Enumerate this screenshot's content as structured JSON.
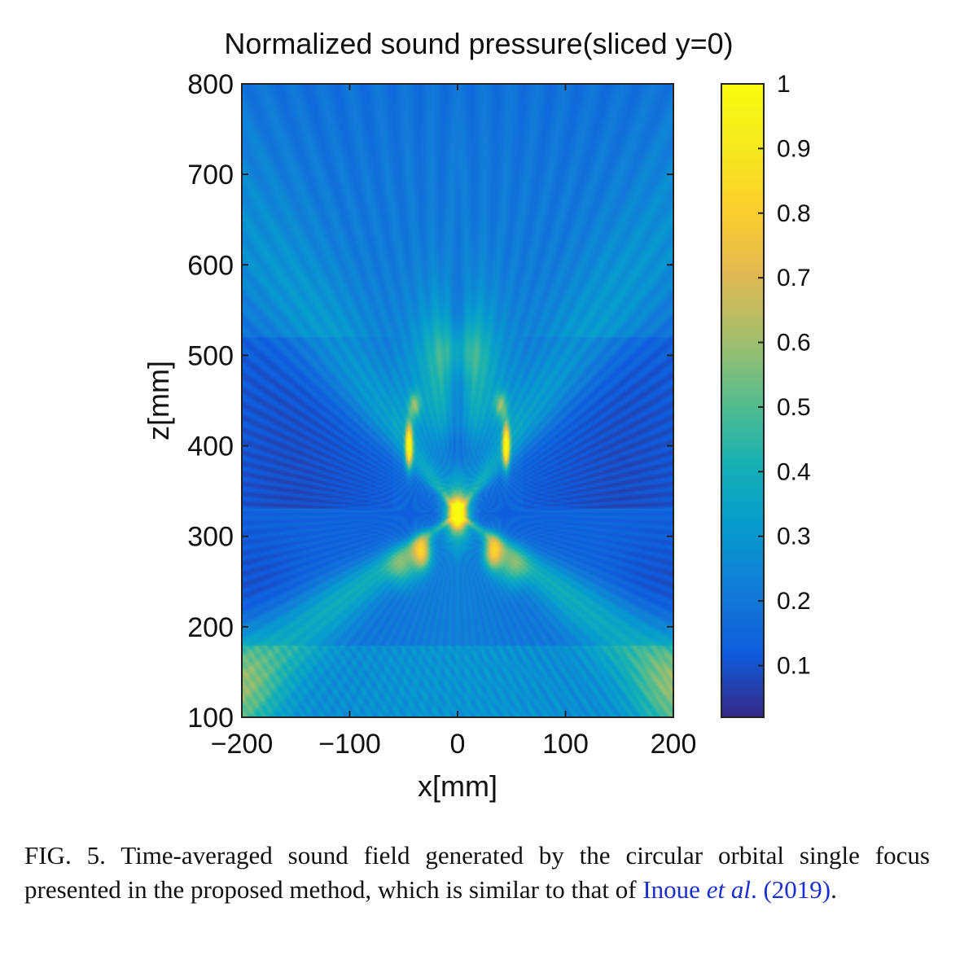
{
  "chart_data": {
    "type": "heatmap",
    "title": "Normalized sound pressure(sliced y=0)",
    "xlabel": "x[mm]",
    "ylabel": "z[mm]",
    "xlim": [
      -200,
      200
    ],
    "ylim": [
      100,
      800
    ],
    "x_ticks": [
      -200,
      -100,
      0,
      100,
      200
    ],
    "x_tick_labels": [
      "−200",
      "−100",
      "0",
      "100",
      "200"
    ],
    "y_ticks": [
      100,
      200,
      300,
      400,
      500,
      600,
      700,
      800
    ],
    "y_tick_labels": [
      "100",
      "200",
      "300",
      "400",
      "500",
      "600",
      "700",
      "800"
    ],
    "colormap": "parula",
    "colorbar": {
      "range": [
        0.02,
        1.0
      ],
      "ticks": [
        0.1,
        0.2,
        0.3,
        0.4,
        0.5,
        0.6,
        0.7,
        0.8,
        0.9,
        1
      ],
      "tick_labels": [
        "0.1",
        "0.2",
        "0.3",
        "0.4",
        "0.5",
        "0.6",
        "0.7",
        "0.8",
        "0.9",
        "1"
      ]
    },
    "features": [
      {
        "label": "focus",
        "x": 0,
        "z": 325,
        "value": 0.85
      },
      {
        "label": "left lobe",
        "x": -45,
        "z": 400,
        "value": 0.95
      },
      {
        "label": "right lobe",
        "x": 45,
        "z": 400,
        "value": 0.95
      },
      {
        "label": "left lower arm",
        "x": -35,
        "z": 280,
        "value": 0.75
      },
      {
        "label": "right lower arm",
        "x": 35,
        "z": 280,
        "value": 0.75
      }
    ],
    "background_value": 0.1
  },
  "caption": {
    "prefix": "FIG. 5. Time-averaged sound field generated by the circular orbital single focus presented in the proposed method, which is similar to that of ",
    "link_author": "Inoue",
    "link_etal": "et al",
    "link_year": ". (2019)",
    "suffix": "."
  }
}
